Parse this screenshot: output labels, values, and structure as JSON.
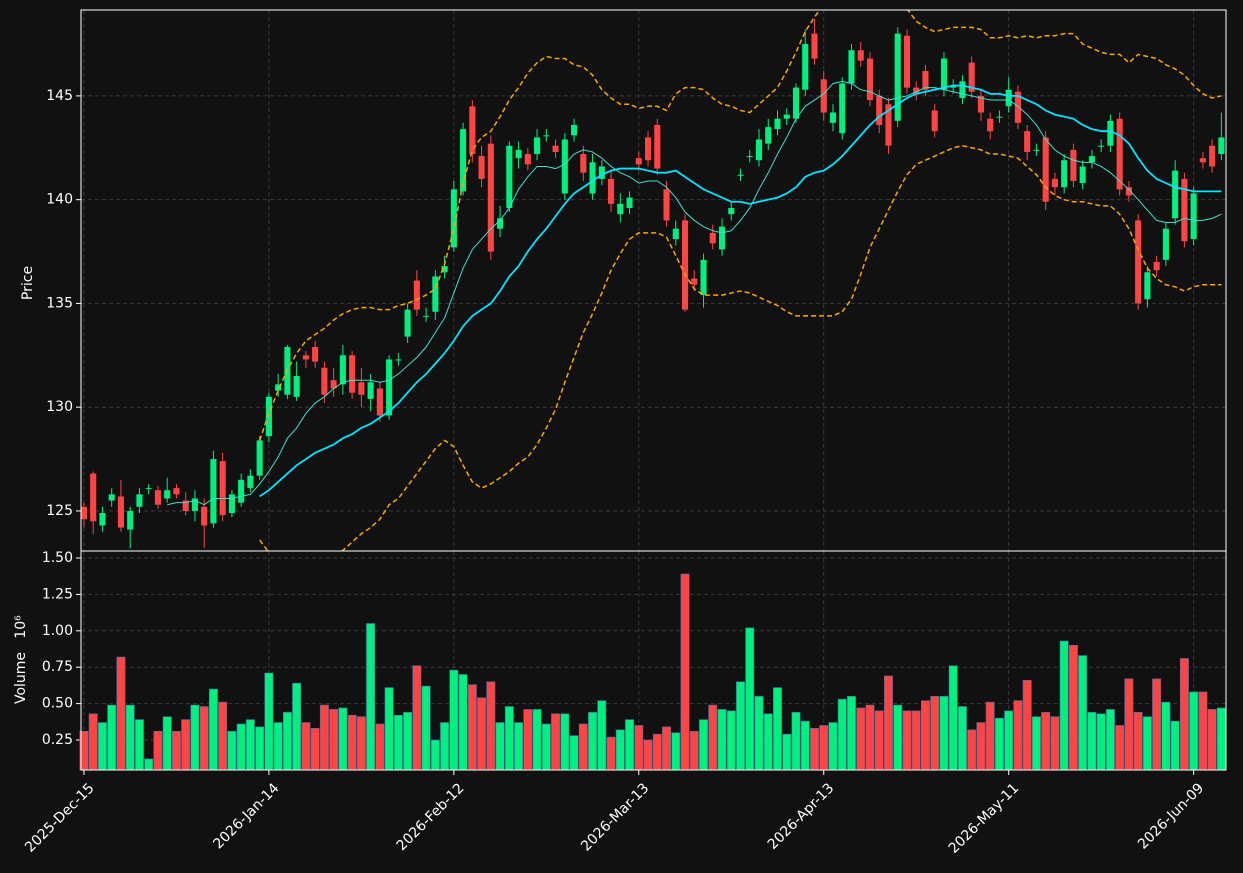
{
  "chart_data": {
    "type": "candlestick",
    "ylabel": "Price",
    "up_color": "#00f080",
    "down_color": "#ff4444",
    "grid": true,
    "xlim": [
      -0.32,
      123.5
    ],
    "xticks": [
      {
        "value": 0,
        "label": "2025-Dec-15"
      },
      {
        "value": 20,
        "label": "2026-Jan-14"
      },
      {
        "value": 40,
        "label": "2026-Feb-12"
      },
      {
        "value": 60,
        "label": "2026-Mar-13"
      },
      {
        "value": 80,
        "label": "2026-Apr-13"
      },
      {
        "value": 100,
        "label": "2026-May-11"
      },
      {
        "value": 120,
        "label": "2026-Jun-09"
      }
    ],
    "ylim": [
      123.07,
      149.14
    ],
    "yticks": [
      125,
      130,
      135,
      140,
      145
    ],
    "open": [
      125.2,
      126.8,
      124.3,
      125.5,
      125.7,
      124.1,
      125.2,
      126.1,
      126.0,
      125.6,
      126.1,
      125.5,
      125.0,
      125.2,
      124.4,
      127.4,
      124.9,
      125.4,
      126.1,
      126.7,
      128.6,
      130.8,
      130.6,
      130.5,
      132.5,
      132.9,
      131.9,
      131.3,
      131.1,
      132.5,
      131.2,
      130.4,
      130.9,
      129.6,
      132.3,
      133.4,
      136.1,
      134.4,
      134.6,
      136.5,
      137.7,
      140.4,
      144.5,
      142.1,
      142.7,
      138.6,
      139.6,
      142.0,
      142.2,
      142.2,
      143.1,
      142.6,
      140.3,
      143.1,
      142.2,
      140.3,
      141.0,
      141.0,
      139.3,
      139.6,
      142.0,
      143.0,
      143.6,
      140.5,
      138.1,
      139.0,
      136.2,
      135.4,
      138.4,
      137.6,
      139.3,
      141.2,
      142.1,
      141.9,
      142.7,
      143.4,
      143.9,
      143.9,
      145.3,
      148.0,
      145.8,
      143.7,
      143.2,
      145.6,
      147.2,
      146.8,
      145.0,
      144.6,
      143.8,
      147.9,
      145.4,
      146.2,
      144.3,
      145.3,
      145.4,
      144.9,
      146.6,
      145.0,
      143.9,
      144.0,
      144.5,
      145.2,
      143.3,
      142.4,
      143.0,
      141.0,
      140.6,
      142.4,
      140.8,
      141.8,
      142.6,
      142.6,
      143.9,
      140.6,
      139.0,
      135.2,
      137.0,
      137.1,
      139.1,
      141.0,
      138.1,
      142.0,
      142.6,
      142.2
    ],
    "high": [
      125.4,
      126.9,
      125.2,
      126.1,
      126.5,
      125.2,
      126.1,
      126.3,
      126.2,
      126.6,
      126.3,
      125.9,
      126.0,
      125.6,
      127.9,
      127.8,
      126.0,
      126.8,
      127.0,
      128.6,
      130.7,
      131.6,
      133.0,
      132.2,
      132.7,
      133.2,
      132.2,
      131.9,
      133.0,
      132.7,
      131.9,
      131.6,
      131.2,
      132.5,
      132.6,
      135.0,
      136.6,
      134.8,
      136.6,
      137.3,
      140.9,
      143.7,
      144.8,
      142.6,
      143.1,
      139.7,
      142.8,
      142.8,
      142.5,
      143.4,
      143.4,
      142.9,
      143.2,
      143.9,
      142.6,
      142.2,
      141.9,
      141.4,
      140.3,
      140.4,
      142.3,
      143.3,
      143.9,
      140.9,
      139.0,
      139.3,
      136.6,
      137.4,
      138.8,
      139.1,
      139.9,
      141.5,
      142.4,
      143.4,
      143.9,
      144.3,
      144.4,
      145.6,
      148.2,
      148.7,
      146.2,
      144.6,
      145.9,
      147.5,
      147.6,
      147.1,
      145.3,
      144.9,
      148.3,
      148.2,
      145.7,
      146.5,
      144.6,
      147.1,
      145.8,
      146.0,
      146.9,
      145.3,
      144.2,
      144.3,
      145.9,
      145.5,
      143.6,
      142.7,
      143.3,
      141.3,
      142.2,
      142.7,
      141.9,
      142.4,
      142.9,
      144.1,
      144.2,
      140.9,
      139.3,
      136.8,
      137.3,
      138.9,
      141.9,
      141.3,
      140.6,
      142.3,
      142.9,
      144.2
    ],
    "low": [
      124.2,
      123.9,
      124.0,
      125.2,
      124.0,
      123.2,
      124.9,
      125.8,
      125.1,
      125.4,
      125.6,
      124.8,
      124.5,
      123.2,
      124.2,
      124.5,
      124.7,
      125.2,
      125.9,
      126.5,
      128.3,
      130.5,
      130.4,
      130.3,
      131.9,
      131.9,
      130.2,
      130.5,
      130.6,
      130.4,
      130.0,
      129.8,
      129.3,
      129.4,
      132.0,
      133.1,
      134.4,
      134.1,
      134.2,
      136.2,
      137.5,
      140.2,
      141.8,
      140.6,
      137.1,
      138.2,
      139.4,
      141.5,
      141.4,
      141.9,
      142.8,
      142.0,
      140.0,
      142.8,
      140.9,
      140.0,
      140.7,
      139.4,
      138.9,
      139.3,
      141.4,
      141.6,
      141.2,
      138.7,
      137.8,
      134.6,
      135.6,
      134.8,
      137.6,
      137.3,
      139.0,
      140.9,
      141.8,
      141.6,
      142.4,
      143.1,
      143.6,
      143.7,
      145.0,
      146.5,
      143.8,
      143.3,
      142.9,
      145.3,
      146.4,
      144.5,
      143.2,
      142.2,
      143.5,
      145.1,
      144.8,
      145.0,
      143.0,
      145.0,
      145.1,
      144.6,
      144.9,
      143.8,
      142.9,
      143.7,
      144.2,
      143.4,
      141.9,
      142.1,
      139.5,
      140.2,
      140.3,
      140.6,
      140.5,
      141.5,
      142.3,
      142.3,
      140.2,
      139.9,
      134.7,
      134.8,
      136.3,
      136.8,
      138.8,
      137.7,
      137.8,
      141.5,
      141.3,
      141.9
    ],
    "close": [
      124.6,
      124.5,
      124.9,
      125.8,
      124.2,
      125.0,
      125.8,
      126.1,
      125.3,
      126.0,
      125.8,
      125.0,
      125.6,
      124.3,
      127.5,
      124.8,
      125.8,
      126.5,
      126.7,
      128.4,
      130.5,
      131.1,
      132.9,
      131.5,
      132.3,
      132.2,
      130.6,
      130.9,
      132.5,
      130.7,
      130.6,
      131.2,
      129.6,
      132.3,
      132.3,
      134.7,
      134.7,
      134.4,
      136.3,
      136.8,
      140.5,
      143.4,
      142.2,
      141.0,
      137.5,
      139.1,
      142.6,
      142.4,
      141.7,
      143.0,
      143.1,
      142.3,
      142.9,
      143.6,
      141.3,
      141.8,
      141.6,
      139.8,
      139.8,
      140.1,
      141.7,
      141.9,
      141.5,
      139.0,
      138.6,
      134.7,
      135.9,
      137.1,
      137.9,
      138.7,
      139.6,
      141.2,
      142.1,
      142.9,
      143.5,
      143.9,
      144.1,
      145.4,
      147.5,
      146.8,
      144.2,
      144.2,
      145.6,
      147.2,
      146.7,
      144.8,
      143.6,
      142.6,
      148.0,
      145.4,
      145.1,
      145.3,
      143.3,
      146.8,
      145.5,
      145.7,
      145.2,
      144.2,
      143.3,
      144.0,
      145.3,
      143.7,
      142.3,
      142.4,
      139.9,
      140.6,
      141.9,
      140.9,
      141.6,
      142.1,
      142.6,
      143.8,
      140.5,
      140.2,
      135.0,
      136.5,
      136.6,
      138.6,
      141.4,
      138.0,
      140.3,
      141.8,
      141.6,
      143.0
    ],
    "lines": [
      {
        "color": "#3fe0d0",
        "width": 1,
        "dash": false,
        "values": [
          null,
          null,
          null,
          null,
          null,
          null,
          null,
          null,
          null,
          125.3,
          125.4,
          125.4,
          125.5,
          125.3,
          125.6,
          125.6,
          125.6,
          125.7,
          125.8,
          126.3,
          126.9,
          127.6,
          128.5,
          129.0,
          129.7,
          130.2,
          130.5,
          130.9,
          131.2,
          131.3,
          131.3,
          131.3,
          131.2,
          131.3,
          131.6,
          132.0,
          132.4,
          132.9,
          133.6,
          134.3,
          135.5,
          136.7,
          137.6,
          138.1,
          138.6,
          139.0,
          139.6,
          140.5,
          141.1,
          141.6,
          141.6,
          141.5,
          141.7,
          142.2,
          142.4,
          142.3,
          142.0,
          141.6,
          141.3,
          141.1,
          140.8,
          140.9,
          140.9,
          140.6,
          140.1,
          139.4,
          139.0,
          138.7,
          138.5,
          138.4,
          138.5,
          139.0,
          139.6,
          140.5,
          141.3,
          142.2,
          143.0,
          143.9,
          144.5,
          144.8,
          145.1,
          145.6,
          145.7,
          145.6,
          145.3,
          145.2,
          145.0,
          144.8,
          144.9,
          145.0,
          145.2,
          145.4,
          145.4,
          145.3,
          145.2,
          145.1,
          145.0,
          144.9,
          144.8,
          144.8,
          144.8,
          144.5,
          144.1,
          143.6,
          142.9,
          142.4,
          142.1,
          141.9,
          141.8,
          141.8,
          141.6,
          141.3,
          140.9,
          140.5,
          140.0,
          139.5,
          139.0,
          138.9,
          138.9,
          139.1,
          139.0,
          139.0,
          139.1,
          139.3
        ]
      },
      {
        "color": "#00e5ff",
        "width": 1.8,
        "dash": false,
        "values": [
          null,
          null,
          null,
          null,
          null,
          null,
          null,
          null,
          null,
          null,
          null,
          null,
          null,
          null,
          null,
          null,
          null,
          null,
          null,
          125.7,
          126.0,
          126.4,
          126.8,
          127.2,
          127.5,
          127.8,
          128.0,
          128.2,
          128.5,
          128.7,
          129.0,
          129.2,
          129.5,
          129.8,
          130.2,
          130.7,
          131.2,
          131.6,
          132.1,
          132.6,
          133.2,
          133.9,
          134.4,
          134.7,
          135.0,
          135.6,
          136.3,
          136.8,
          137.5,
          138.1,
          138.6,
          139.2,
          139.8,
          140.3,
          140.6,
          140.9,
          141.2,
          141.4,
          141.5,
          141.5,
          141.5,
          141.4,
          141.3,
          141.3,
          141.4,
          141.1,
          140.8,
          140.5,
          140.3,
          140.1,
          139.9,
          139.9,
          139.8,
          139.9,
          140.0,
          140.1,
          140.3,
          140.6,
          141.1,
          141.3,
          141.4,
          141.7,
          142.1,
          142.6,
          143.1,
          143.6,
          144.0,
          144.3,
          144.6,
          144.9,
          145.1,
          145.2,
          145.3,
          145.4,
          145.5,
          145.5,
          145.4,
          145.3,
          145.1,
          145.1,
          145.0,
          145.0,
          144.8,
          144.6,
          144.3,
          144.1,
          144.0,
          143.9,
          143.6,
          143.4,
          143.3,
          143.3,
          143.1,
          142.7,
          142.0,
          141.4,
          141.0,
          140.8,
          140.6,
          140.5,
          140.4,
          140.4,
          140.4,
          140.4
        ]
      },
      {
        "color": "#ffa500",
        "width": 1.5,
        "dash": true,
        "values": [
          null,
          null,
          null,
          null,
          null,
          null,
          null,
          null,
          null,
          null,
          null,
          null,
          null,
          null,
          null,
          null,
          null,
          null,
          null,
          128.4,
          129.7,
          130.8,
          131.8,
          132.6,
          133.2,
          133.5,
          133.8,
          134.2,
          134.5,
          134.7,
          134.8,
          134.8,
          134.7,
          134.7,
          134.9,
          135.0,
          135.2,
          135.4,
          135.7,
          136.9,
          138.6,
          140.8,
          142.4,
          143.0,
          143.3,
          144.0,
          144.8,
          145.4,
          146.1,
          146.6,
          146.9,
          146.8,
          146.8,
          146.5,
          146.4,
          146.0,
          145.3,
          144.9,
          144.6,
          144.6,
          144.4,
          144.5,
          144.5,
          144.3,
          145.1,
          145.4,
          145.4,
          145.3,
          144.9,
          144.6,
          144.5,
          144.3,
          144.2,
          144.6,
          145.0,
          145.4,
          146.2,
          147.1,
          148.1,
          148.8,
          149.4,
          150.0,
          150.3,
          150.3,
          150.2,
          149.9,
          149.5,
          149.4,
          149.4,
          149.2,
          148.6,
          148.3,
          148.1,
          148.2,
          148.3,
          148.3,
          148.3,
          148.2,
          147.8,
          147.8,
          147.9,
          147.8,
          147.9,
          147.8,
          147.9,
          147.9,
          148.0,
          148.0,
          147.5,
          147.3,
          147.1,
          147.0,
          147.0,
          146.6,
          147.0,
          146.9,
          146.8,
          146.5,
          146.3,
          146.0,
          145.5,
          145.1,
          144.9,
          145.0
        ]
      },
      {
        "color": "#ffa500",
        "width": 1.5,
        "dash": true,
        "values": [
          null,
          null,
          null,
          null,
          null,
          null,
          null,
          null,
          null,
          null,
          null,
          null,
          null,
          null,
          null,
          null,
          null,
          null,
          null,
          123.6,
          123.0,
          122.6,
          122.4,
          122.3,
          122.3,
          122.4,
          122.6,
          122.8,
          123.1,
          123.5,
          123.9,
          124.2,
          124.6,
          125.3,
          125.6,
          126.2,
          126.8,
          127.4,
          128.0,
          128.4,
          128.1,
          127.2,
          126.4,
          126.1,
          126.3,
          126.6,
          126.9,
          127.3,
          127.6,
          128.2,
          129.0,
          129.9,
          131.2,
          132.4,
          133.6,
          134.5,
          135.5,
          136.6,
          137.4,
          138.1,
          138.4,
          138.4,
          138.4,
          138.2,
          137.3,
          136.4,
          135.7,
          135.4,
          135.4,
          135.4,
          135.5,
          135.6,
          135.5,
          135.3,
          135.1,
          134.9,
          134.6,
          134.4,
          134.4,
          134.4,
          134.4,
          134.4,
          134.6,
          135.2,
          136.4,
          137.7,
          138.6,
          139.5,
          140.4,
          141.2,
          141.7,
          141.9,
          142.1,
          142.3,
          142.5,
          142.6,
          142.5,
          142.4,
          142.2,
          142.2,
          142.1,
          142.0,
          141.6,
          141.2,
          140.6,
          140.2,
          140.0,
          139.9,
          139.9,
          139.8,
          139.7,
          139.7,
          139.3,
          138.6,
          137.6,
          136.7,
          136.2,
          135.9,
          135.8,
          135.6,
          135.8,
          135.9,
          135.9,
          135.9
        ]
      }
    ],
    "volume": {
      "ylabel": "Volume",
      "scale_label": "10⁶",
      "ylim": [
        0.044,
        1.548
      ],
      "yticks": [
        0.25,
        {
          "value": 0.5,
          "label": "0.50"
        },
        0.75,
        {
          "value": 1.0,
          "label": "1.00"
        },
        1.25,
        {
          "value": 1.5,
          "label": "1.50"
        }
      ],
      "values": [
        0.31,
        0.43,
        0.37,
        0.49,
        0.82,
        0.49,
        0.39,
        0.12,
        0.31,
        0.41,
        0.31,
        0.39,
        0.49,
        0.48,
        0.6,
        0.51,
        0.31,
        0.36,
        0.39,
        0.34,
        0.71,
        0.37,
        0.44,
        0.64,
        0.37,
        0.33,
        0.49,
        0.46,
        0.47,
        0.42,
        0.41,
        1.05,
        0.36,
        0.61,
        0.42,
        0.44,
        0.76,
        0.62,
        0.25,
        0.37,
        0.73,
        0.7,
        0.63,
        0.54,
        0.65,
        0.37,
        0.48,
        0.37,
        0.46,
        0.46,
        0.36,
        0.43,
        0.43,
        0.28,
        0.36,
        0.44,
        0.52,
        0.27,
        0.32,
        0.39,
        0.35,
        0.25,
        0.29,
        0.34,
        0.3,
        1.39,
        0.31,
        0.39,
        0.49,
        0.46,
        0.45,
        0.65,
        1.02,
        0.55,
        0.43,
        0.61,
        0.29,
        0.44,
        0.38,
        0.33,
        0.35,
        0.37,
        0.53,
        0.55,
        0.47,
        0.49,
        0.45,
        0.69,
        0.49,
        0.45,
        0.45,
        0.52,
        0.55,
        0.55,
        0.76,
        0.48,
        0.32,
        0.37,
        0.51,
        0.4,
        0.45,
        0.52,
        0.66,
        0.41,
        0.44,
        0.41,
        0.93,
        0.9,
        0.83,
        0.44,
        0.43,
        0.46,
        0.35,
        0.67,
        0.44,
        0.41,
        0.67,
        0.51,
        0.38,
        0.81,
        0.58,
        0.58,
        0.46,
        0.47
      ]
    }
  }
}
